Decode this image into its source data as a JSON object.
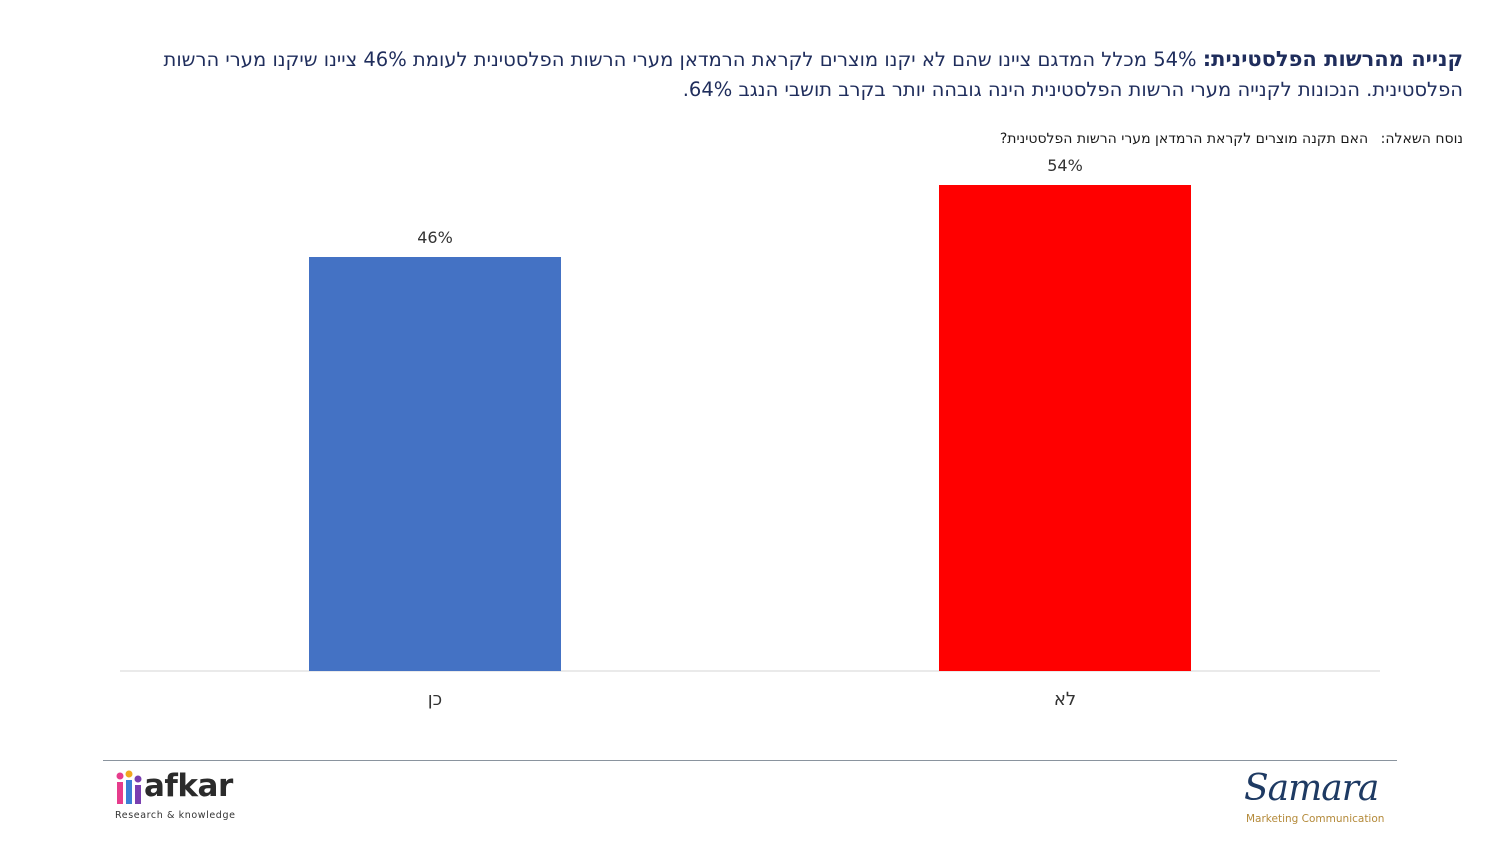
{
  "header": {
    "title_bold": "קנייה מהרשות הפלסטינית:",
    "title_rest": "54% מכלל המדגם ציינו שהם לא יקנו מוצרים לקראת הרמדאן מערי הרשות הפלסטינית לעומת 46% ציינו שיקנו מערי הרשות הפלסטינית. הנכונות לקנייה מערי הרשות הפלסטינית הינה גובהה יותר בקרב תושבי הנגב 64%.",
    "question_label": "נוסח השאלה:",
    "question_text": "האם תקנה מוצרים לקראת הרמדאן מערי הרשות הפלסטינית?"
  },
  "chart_data": {
    "type": "bar",
    "categories": [
      "כן",
      "לא"
    ],
    "values": [
      46,
      54
    ],
    "data_labels": [
      "46%",
      "54%"
    ],
    "colors": [
      "#4472c4",
      "#ff0000"
    ],
    "ylim": [
      0,
      60
    ],
    "grid": false,
    "legend": "none",
    "unit": "%"
  },
  "footer": {
    "logo_left_word": "afkar",
    "logo_left_tagline": "Research & knowledge",
    "logo_right_word": "Samara",
    "logo_right_tagline": "Marketing Communication"
  }
}
